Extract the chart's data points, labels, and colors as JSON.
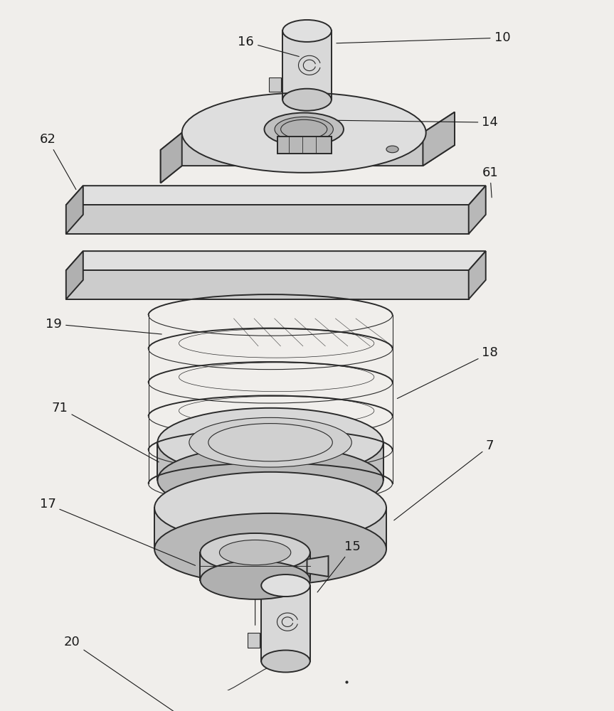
{
  "bg_color": "#f0eeeb",
  "line_color": "#2a2a2a",
  "label_color": "#1a1a1a",
  "figsize": [
    8.63,
    10.0
  ],
  "dpi": 100
}
